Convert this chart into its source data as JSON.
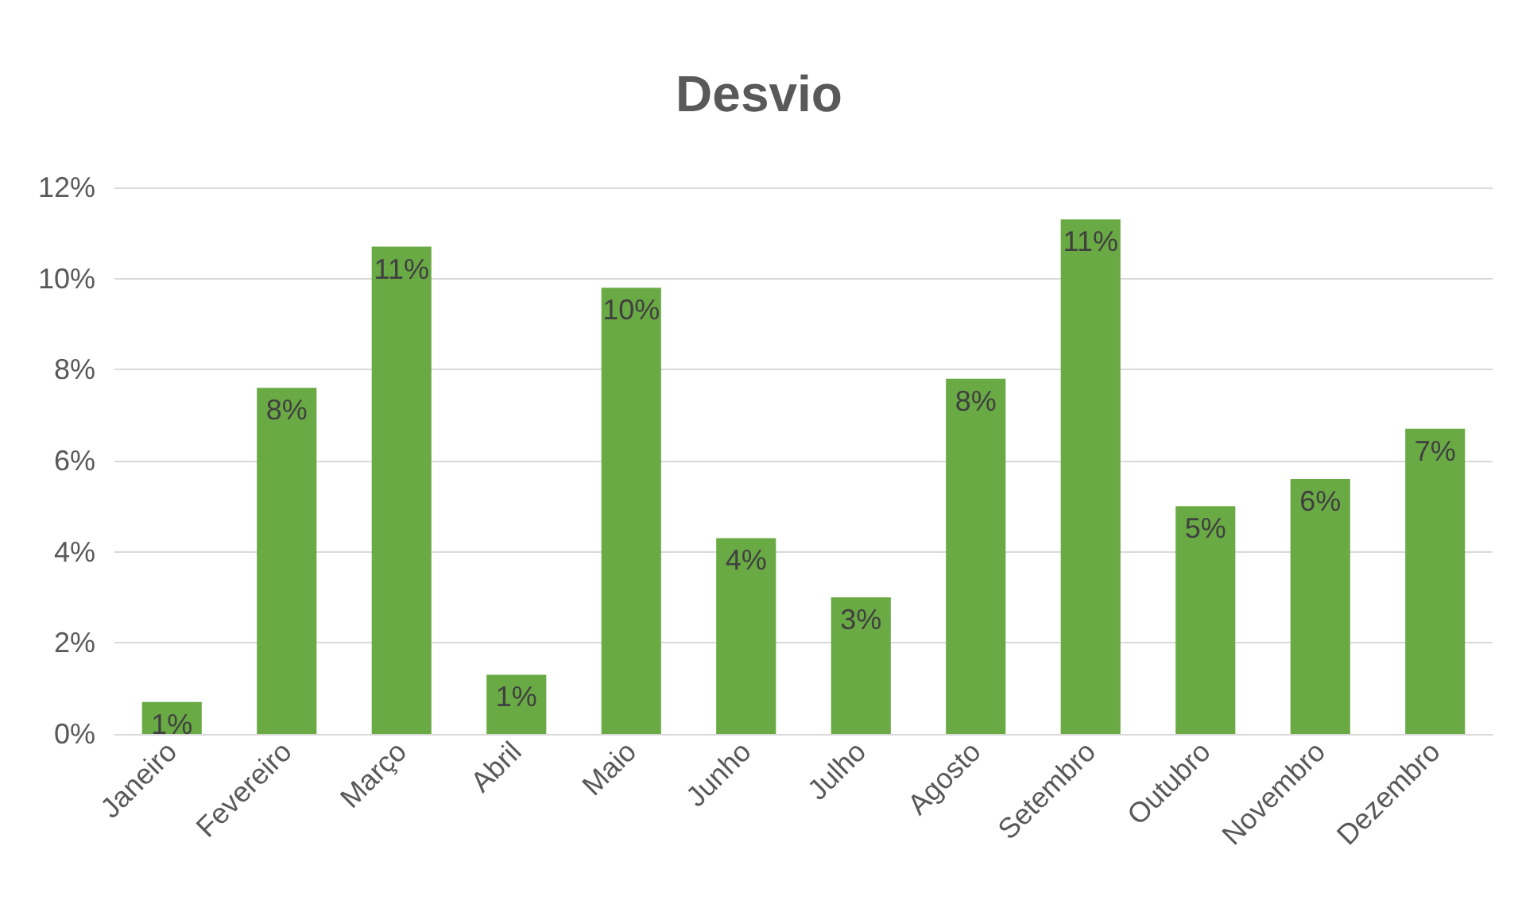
{
  "chart_data": {
    "type": "bar",
    "title": "Desvio",
    "categories": [
      "Janeiro",
      "Fevereiro",
      "Março",
      "Abril",
      "Maio",
      "Junho",
      "Julho",
      "Agosto",
      "Setembro",
      "Outubro",
      "Novembro",
      "Dezembro"
    ],
    "values": [
      0.7,
      7.6,
      10.7,
      1.3,
      9.8,
      4.3,
      3.0,
      7.8,
      11.3,
      5.0,
      5.6,
      6.7
    ],
    "value_labels": [
      "1%",
      "8%",
      "11%",
      "1%",
      "10%",
      "4%",
      "3%",
      "8%",
      "11%",
      "5%",
      "6%",
      "7%"
    ],
    "color": "#6aaa45",
    "ylim": [
      0,
      12
    ],
    "yticks": [
      {
        "value": 0,
        "label": "0%"
      },
      {
        "value": 2,
        "label": "2%"
      },
      {
        "value": 4,
        "label": "4%"
      },
      {
        "value": 6,
        "label": "6%"
      },
      {
        "value": 8,
        "label": "8%"
      },
      {
        "value": 10,
        "label": "10%"
      },
      {
        "value": 12,
        "label": "12%"
      }
    ],
    "grid": "y"
  }
}
